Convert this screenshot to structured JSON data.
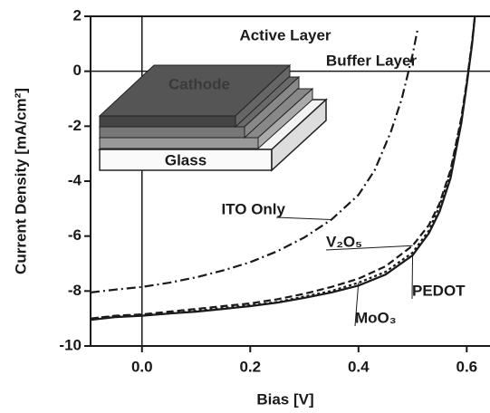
{
  "chart_data": {
    "type": "line",
    "x_label": "Bias [V]",
    "y_label": "Current Density [mA/cm²]",
    "xlim": [
      -0.095,
      0.643
    ],
    "ylim": [
      -10,
      2
    ],
    "xticks": [
      {
        "value": 0,
        "label": "0.0"
      },
      0.2,
      0.4,
      0.6
    ],
    "yticks": [
      2,
      0,
      -2,
      -4,
      -6,
      -8,
      -10
    ],
    "zero_lines": true,
    "x": [
      -0.095,
      -0.05,
      0,
      0.05,
      0.1,
      0.15,
      0.2,
      0.25,
      0.3,
      0.35,
      0.4,
      0.45,
      0.5,
      0.53,
      0.55,
      0.57,
      0.59,
      0.6,
      0.61,
      0.615
    ],
    "series": [
      {
        "name": "ITO Only",
        "color": "#1a1a1a",
        "dash": "dashdot",
        "x": [
          -0.095,
          -0.05,
          0,
          0.05,
          0.1,
          0.15,
          0.2,
          0.25,
          0.3,
          0.35,
          0.4,
          0.43,
          0.46,
          0.48,
          0.5,
          0.51
        ],
        "values": [
          -8.05,
          -7.95,
          -7.85,
          -7.7,
          -7.5,
          -7.25,
          -6.95,
          -6.55,
          -6.05,
          -5.4,
          -4.5,
          -3.6,
          -2.2,
          -1.0,
          0.6,
          1.6
        ]
      },
      {
        "name": "V₂O₅",
        "color": "#1a1a1a",
        "dash": "dash",
        "values": [
          -9.0,
          -8.9,
          -8.85,
          -8.75,
          -8.65,
          -8.55,
          -8.45,
          -8.3,
          -8.1,
          -7.85,
          -7.55,
          -7.1,
          -6.35,
          -5.6,
          -4.8,
          -3.6,
          -1.7,
          -0.4,
          1.1,
          2.0
        ]
      },
      {
        "name": "PEDOT",
        "color": "#1a1a1a",
        "dash": "solid",
        "values": [
          -9.05,
          -8.95,
          -8.9,
          -8.82,
          -8.75,
          -8.65,
          -8.55,
          -8.42,
          -8.25,
          -8.05,
          -7.8,
          -7.4,
          -6.7,
          -5.9,
          -5.1,
          -3.9,
          -1.9,
          -0.5,
          1.0,
          2.0
        ]
      },
      {
        "name": "MoO₃",
        "color": "#1a1a1a",
        "dash": "dot",
        "values": [
          -9.0,
          -8.92,
          -8.88,
          -8.82,
          -8.72,
          -8.62,
          -8.52,
          -8.4,
          -8.2,
          -8.0,
          -7.7,
          -7.3,
          -6.6,
          -5.8,
          -4.9,
          -3.7,
          -1.8,
          -0.45,
          1.05,
          2.0
        ]
      }
    ],
    "inset_labels": [
      "Active Layer",
      "Buffer Layer",
      "Cathode",
      "Glass"
    ]
  }
}
